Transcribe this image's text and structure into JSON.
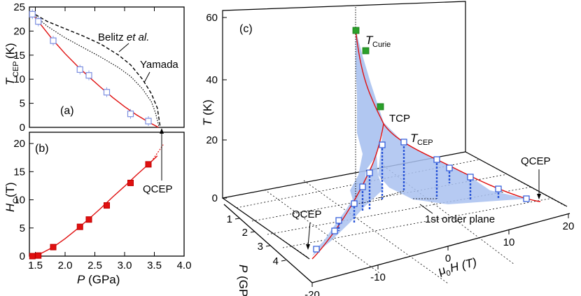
{
  "chart_data": [
    {
      "panel": "(a)",
      "type": "scatter",
      "xlabel": "P (GPa)",
      "ylabel_main": "T",
      "ylabel_sub": "CEP",
      "ylabel_unit": "(K)",
      "xlim": [
        1.4,
        4.0
      ],
      "ylim": [
        0,
        25
      ],
      "yticks": [
        "0",
        "5",
        "10",
        "15",
        "20",
        "25"
      ],
      "series": [
        {
          "name": "data",
          "x": [
            1.45,
            1.55,
            1.8,
            2.25,
            2.4,
            2.7,
            3.1,
            3.4
          ],
          "y": [
            23.5,
            22.0,
            18.0,
            12.0,
            10.8,
            7.3,
            2.8,
            1.3
          ]
        },
        {
          "name": "fit",
          "x": [
            1.42,
            1.6,
            1.8,
            2.0,
            2.2,
            2.4,
            2.6,
            2.8,
            3.0,
            3.2,
            3.4,
            3.57
          ],
          "y": [
            24.0,
            21.2,
            18.1,
            15.3,
            12.8,
            10.5,
            8.3,
            6.2,
            4.3,
            2.6,
            1.1,
            0
          ]
        },
        {
          "name": "Belitz et al.",
          "x": [
            1.42,
            1.7,
            2.0,
            2.3,
            2.6,
            2.9,
            3.1,
            3.3,
            3.45,
            3.55,
            3.6
          ],
          "y": [
            24.0,
            22.0,
            20.5,
            19.0,
            17.3,
            15.0,
            13.0,
            10.0,
            7.0,
            4.0,
            0
          ]
        },
        {
          "name": "Yamada",
          "x": [
            1.42,
            1.7,
            2.0,
            2.3,
            2.6,
            2.9,
            3.1,
            3.3,
            3.45,
            3.52,
            3.58
          ],
          "y": [
            24.0,
            21.0,
            18.6,
            16.6,
            14.6,
            12.4,
            10.6,
            8.0,
            5.3,
            3.0,
            0
          ]
        }
      ],
      "annotations": [
        "Belitz et al.",
        "Yamada"
      ]
    },
    {
      "panel": "(b)",
      "type": "scatter",
      "xlabel": "P (GPa)",
      "ylabel_main": "H",
      "ylabel_sub": "C",
      "ylabel_unit": "(T)",
      "xlim": [
        1.4,
        4.0
      ],
      "ylim": [
        0,
        22
      ],
      "xticks": [
        "1.5",
        "2.0",
        "2.5",
        "3.0",
        "3.5",
        "4.0"
      ],
      "yticks": [
        "0",
        "5",
        "10",
        "15",
        "20"
      ],
      "series": [
        {
          "name": "data",
          "x": [
            1.45,
            1.55,
            1.8,
            2.25,
            2.4,
            2.7,
            3.1,
            3.4
          ],
          "y": [
            0,
            0.1,
            1.6,
            5.2,
            6.5,
            9.0,
            13.0,
            16.3
          ]
        },
        {
          "name": "fit",
          "x": [
            1.42,
            1.6,
            1.8,
            2.0,
            2.2,
            2.4,
            2.6,
            2.8,
            3.0,
            3.2,
            3.4,
            3.55
          ],
          "y": [
            0,
            0.5,
            1.6,
            3.1,
            4.8,
            6.6,
            8.5,
            10.5,
            12.4,
            14.4,
            16.3,
            17.8
          ]
        },
        {
          "name": "extrapolation",
          "x": [
            3.45,
            3.55,
            3.65
          ],
          "y": [
            16.8,
            18.3,
            19.8
          ]
        }
      ],
      "annotations": [
        "QCEP"
      ]
    },
    {
      "panel": "(c)",
      "type": "scatter",
      "axes": {
        "T": {
          "label": "T (K)",
          "ticks": [
            "0",
            "20",
            "40",
            "60"
          ]
        },
        "P": {
          "label": "P (GPa)",
          "ticks": [
            "1",
            "2",
            "3",
            "4"
          ]
        },
        "H": {
          "label_main": "μ",
          "label_sub": "0",
          "label_rest": "H  (T)",
          "ticks": [
            "-20",
            "-10",
            "0",
            "10",
            "20"
          ]
        }
      },
      "labels": {
        "curie_main": "T",
        "curie_sub": "Curie",
        "tcp": "TCP",
        "tcep_main": "T",
        "tcep_sub": "CEP",
        "qcep_left": "QCEP",
        "qcep_right": "QCEP",
        "plane": "1st order plane"
      }
    }
  ]
}
